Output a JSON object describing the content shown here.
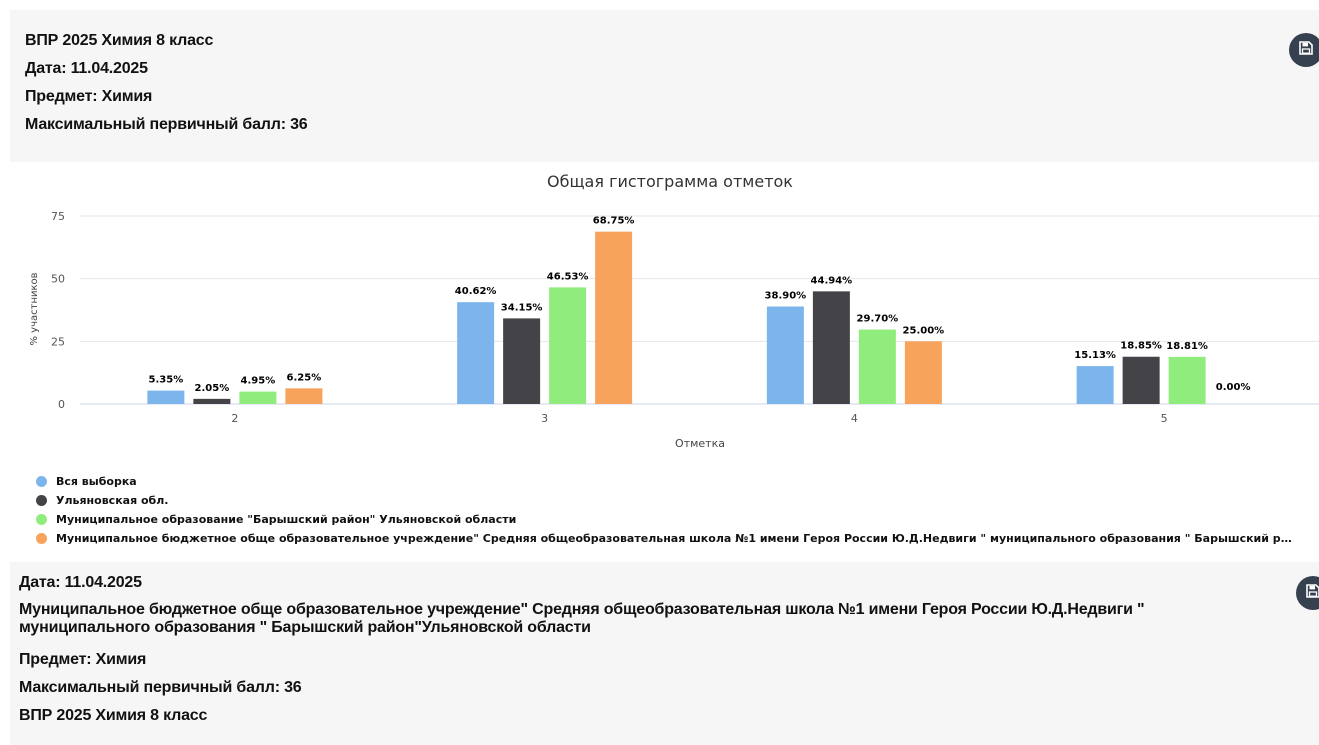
{
  "top_panel": {
    "line1": "ВПР 2025 Химия 8 класс",
    "line2": "Дата: 11.04.2025",
    "line3": "Предмет: Химия",
    "line4": "Максимальный первичный балл: 36"
  },
  "bottom_panel": {
    "line1": "Дата: 11.04.2025",
    "line2": "Муниципальное бюджетное обще образовательное учреждение\" Средняя общеобразовательная школа №1 имени Героя России Ю.Д.Недвиги \" муниципального образования \" Барышский район\"Ульяновской области",
    "line3": "Предмет: Химия",
    "line4": "Максимальный первичный балл: 36",
    "line5": "ВПР 2025 Химия 8 класс"
  },
  "icons": {
    "save": "save-icon"
  },
  "chart_data": {
    "type": "bar",
    "title": "Общая гистограмма отметок",
    "xlabel": "Отметка",
    "ylabel": "% участников",
    "categories": [
      "2",
      "3",
      "4",
      "5"
    ],
    "yticks": [
      0,
      25,
      50,
      75
    ],
    "ylim": [
      0,
      75
    ],
    "grid": true,
    "legend_position": "bottom-left",
    "series": [
      {
        "name": "Вся выборка",
        "color": "#7cb5ec",
        "values": [
          5.35,
          40.62,
          38.9,
          15.13
        ],
        "labels": [
          "5.35%",
          "40.62%",
          "38.90%",
          "15.13%"
        ]
      },
      {
        "name": "Ульяновская обл.",
        "color": "#434348",
        "values": [
          2.05,
          34.15,
          44.94,
          18.85
        ],
        "labels": [
          "2.05%",
          "34.15%",
          "44.94%",
          "18.85%"
        ]
      },
      {
        "name": "Муниципальное образование \"Барышский район\" Ульяновской области",
        "color": "#90ed7d",
        "values": [
          4.95,
          46.53,
          29.7,
          18.81
        ],
        "labels": [
          "4.95%",
          "46.53%",
          "29.70%",
          "18.81%"
        ]
      },
      {
        "name": "Муниципальное бюджетное обще образовательное учреждение\" Средняя общеобразовательная школа №1 имени Героя России Ю.Д.Недвиги \" муниципального образования \" Барышский район\"Ульяновской области",
        "color": "#f7a35c",
        "values": [
          6.25,
          68.75,
          25.0,
          0.0
        ],
        "labels": [
          "6.25%",
          "68.75%",
          "25.00%",
          "0.00%"
        ]
      }
    ]
  }
}
